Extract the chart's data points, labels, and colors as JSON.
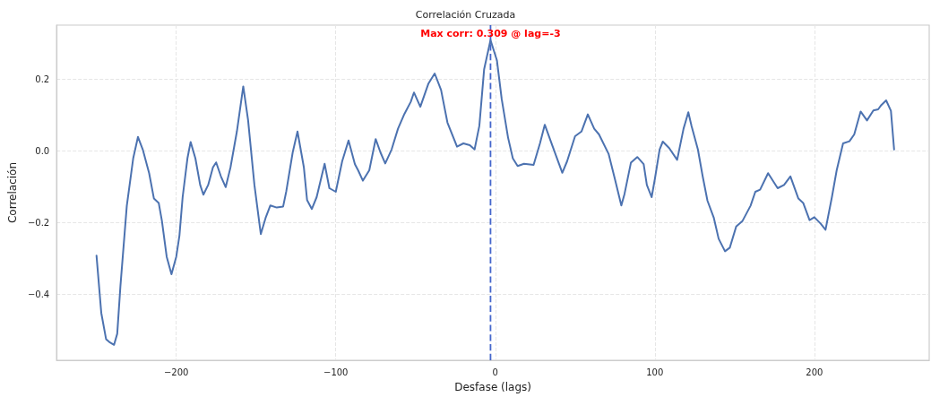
{
  "chart_data": {
    "type": "line",
    "title": "Correlación Cruzada",
    "xlabel": "Desfase (lags)",
    "ylabel": "Correlación",
    "xlim": [
      -275,
      272
    ],
    "ylim": [
      -0.584,
      0.351
    ],
    "xticks": [
      {
        "value": -200,
        "label": "−200"
      },
      {
        "value": -100,
        "label": "−100"
      },
      0,
      100,
      200
    ],
    "yticks": [
      {
        "value": -0.4,
        "label": "−0.4"
      },
      {
        "value": -0.2,
        "label": "−0.2"
      },
      {
        "value": 0,
        "label": "0.0"
      },
      0.2
    ],
    "grid": true,
    "marker": "none",
    "line_style": "solid",
    "ref_lines": [
      {
        "axis": "x",
        "value": -3,
        "label": null,
        "color": "#4466cc",
        "line_style": "dashed"
      }
    ],
    "annotations": [
      {
        "text": "Max corr: 0.309 @ lag=-3",
        "x": -3,
        "y": 0.309
      }
    ],
    "series": [
      {
        "color": "#4c72b0",
        "x": [
          -250,
          -247,
          -244,
          -242,
          -239,
          -237,
          -235,
          -231,
          -227,
          -224,
          -221,
          -217,
          -214,
          -211,
          -209,
          -206,
          -203,
          -200,
          -198,
          -196,
          -193,
          -191,
          -188,
          -185,
          -183,
          -180,
          -177,
          -175,
          -172,
          -169,
          -166,
          -162,
          -158,
          -155,
          -151,
          -147,
          -144,
          -141,
          -137,
          -133,
          -131,
          -127,
          -124,
          -120,
          -118,
          -115,
          -112,
          -107,
          -104,
          -100,
          -96,
          -92,
          -88,
          -86,
          -83,
          -79,
          -75,
          -72,
          -69,
          -65,
          -61,
          -57,
          -53,
          -51,
          -47,
          -42,
          -38,
          -34,
          -30,
          -24,
          -20,
          -16,
          -13,
          -10,
          -7,
          -3,
          1,
          4,
          8,
          11,
          14,
          18,
          24,
          28,
          31,
          36,
          40,
          42,
          45,
          50,
          54,
          58,
          62,
          65,
          71,
          75,
          79,
          81,
          85,
          89,
          93,
          95,
          98,
          100,
          103,
          105,
          109,
          114,
          118,
          121,
          123,
          127,
          130,
          133,
          137,
          140,
          144,
          147,
          151,
          155,
          160,
          163,
          166,
          171,
          177,
          181,
          185,
          190,
          193,
          197,
          200,
          204,
          207,
          211,
          214,
          218,
          222,
          225,
          229,
          233,
          237,
          240,
          242,
          245,
          248,
          250
        ],
        "values": [
          -0.292,
          -0.452,
          -0.525,
          -0.533,
          -0.541,
          -0.51,
          -0.377,
          -0.153,
          -0.021,
          0.039,
          0.004,
          -0.062,
          -0.133,
          -0.145,
          -0.195,
          -0.295,
          -0.344,
          -0.295,
          -0.236,
          -0.129,
          -0.021,
          0.025,
          -0.021,
          -0.095,
          -0.122,
          -0.095,
          -0.046,
          -0.032,
          -0.071,
          -0.101,
          -0.046,
          0.054,
          0.18,
          0.087,
          -0.095,
          -0.232,
          -0.187,
          -0.152,
          -0.158,
          -0.155,
          -0.112,
          -0.004,
          0.054,
          -0.046,
          -0.137,
          -0.162,
          -0.129,
          -0.036,
          -0.104,
          -0.114,
          -0.029,
          0.029,
          -0.037,
          -0.054,
          -0.083,
          -0.054,
          0.033,
          -0.004,
          -0.035,
          0.004,
          0.062,
          0.103,
          0.137,
          0.163,
          0.123,
          0.187,
          0.216,
          0.17,
          0.079,
          0.012,
          0.021,
          0.016,
          0.004,
          0.07,
          0.228,
          0.309,
          0.253,
          0.145,
          0.037,
          -0.021,
          -0.042,
          -0.036,
          -0.039,
          0.021,
          0.073,
          0.012,
          -0.037,
          -0.061,
          -0.029,
          0.041,
          0.054,
          0.102,
          0.062,
          0.046,
          -0.008,
          -0.079,
          -0.152,
          -0.12,
          -0.033,
          -0.017,
          -0.037,
          -0.095,
          -0.129,
          -0.079,
          0.004,
          0.026,
          0.008,
          -0.025,
          0.062,
          0.108,
          0.07,
          0.004,
          -0.071,
          -0.139,
          -0.187,
          -0.245,
          -0.28,
          -0.27,
          -0.211,
          -0.195,
          -0.153,
          -0.114,
          -0.108,
          -0.062,
          -0.104,
          -0.095,
          -0.071,
          -0.133,
          -0.145,
          -0.193,
          -0.185,
          -0.203,
          -0.22,
          -0.129,
          -0.054,
          0.021,
          0.027,
          0.046,
          0.11,
          0.085,
          0.113,
          0.116,
          0.128,
          0.141,
          0.112,
          0.004
        ]
      }
    ]
  }
}
